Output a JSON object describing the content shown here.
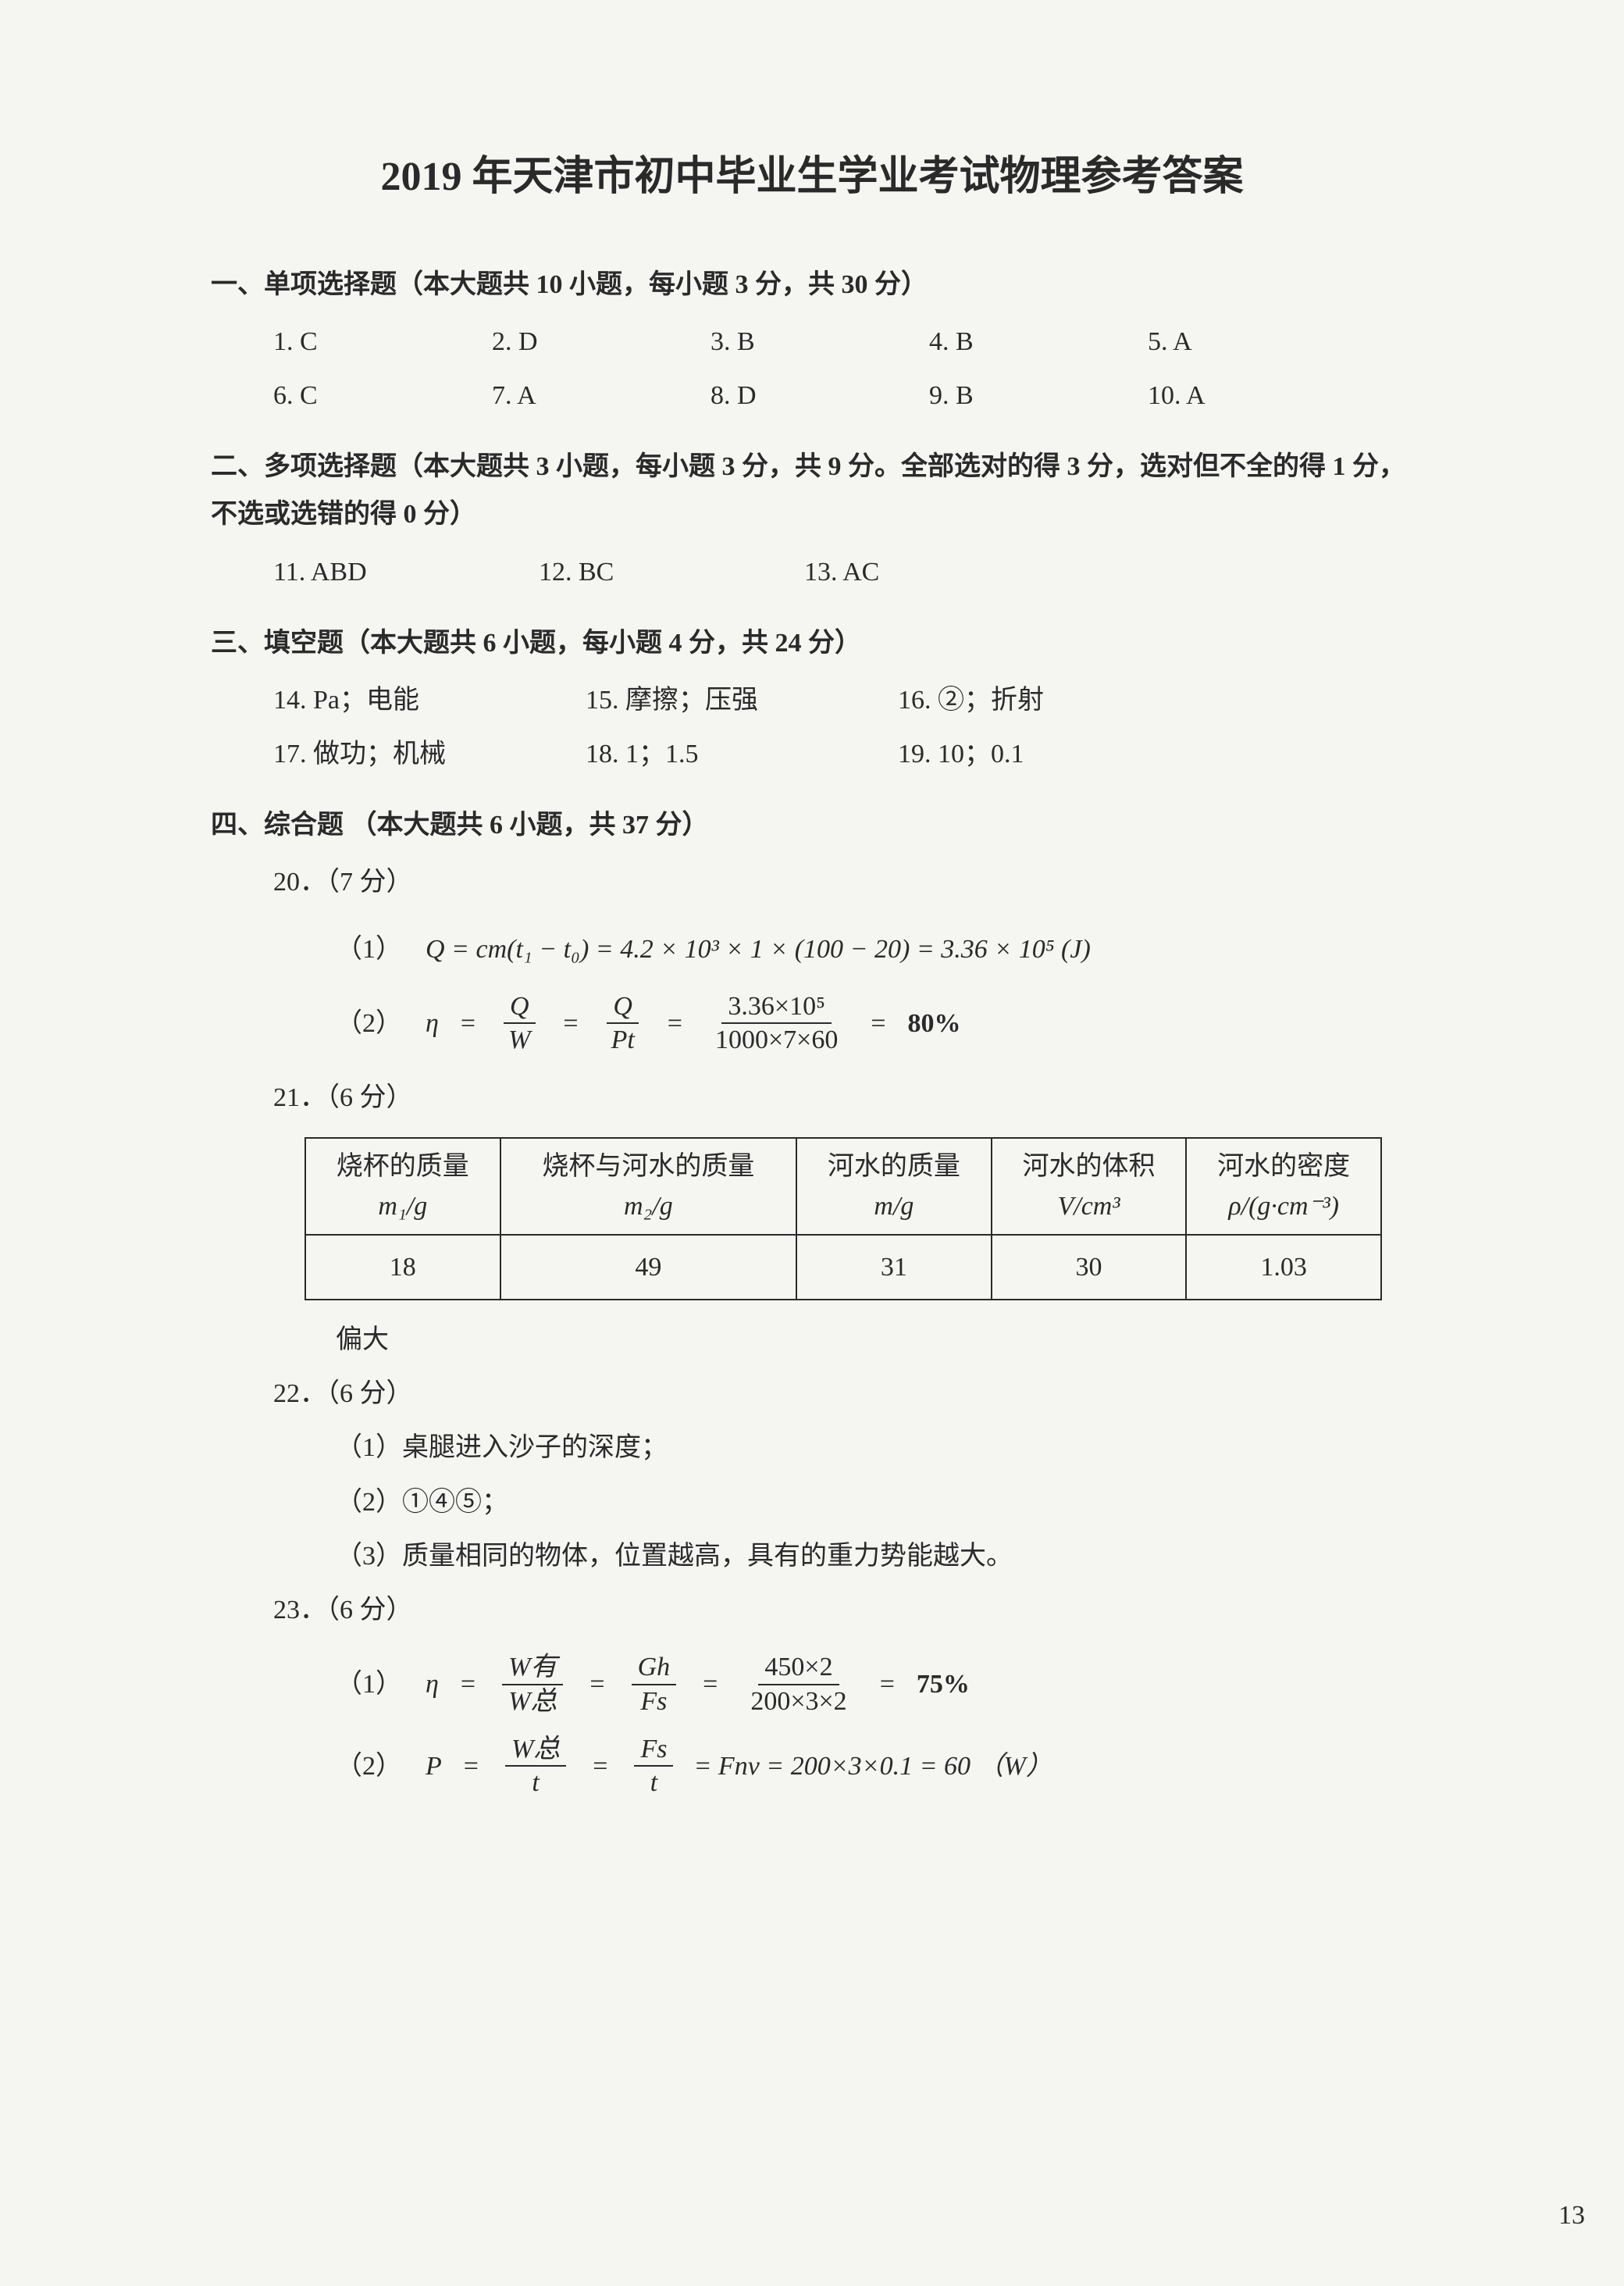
{
  "title": "2019 年天津市初中毕业生学业考试物理参考答案",
  "section1": {
    "header": "一、单项选择题（本大题共 10 小题，每小题 3 分，共 30 分）",
    "items": [
      {
        "n": "1.",
        "a": "C"
      },
      {
        "n": "2.",
        "a": "D"
      },
      {
        "n": "3.",
        "a": "B"
      },
      {
        "n": "4.",
        "a": "B"
      },
      {
        "n": "5.",
        "a": "A"
      },
      {
        "n": "6.",
        "a": "C"
      },
      {
        "n": "7.",
        "a": "A"
      },
      {
        "n": "8.",
        "a": "D"
      },
      {
        "n": "9.",
        "a": "B"
      },
      {
        "n": "10.",
        "a": "A"
      }
    ]
  },
  "section2": {
    "header": "二、多项选择题（本大题共 3 小题，每小题 3 分，共 9 分。全部选对的得 3 分，选对但不全的得 1 分，不选或选错的得 0 分）",
    "items": [
      {
        "n": "11.",
        "a": "ABD"
      },
      {
        "n": "12.",
        "a": "BC"
      },
      {
        "n": "13.",
        "a": "AC"
      }
    ]
  },
  "section3": {
    "header": "三、填空题（本大题共 6 小题，每小题 4 分，共 24 分）",
    "items": [
      {
        "n": "14.",
        "a": "Pa；电能"
      },
      {
        "n": "15.",
        "a": "摩擦；压强"
      },
      {
        "n": "16.",
        "a": "②；折射"
      },
      {
        "n": "17.",
        "a": "做功；机械"
      },
      {
        "n": "18.",
        "a": "1；1.5"
      },
      {
        "n": "19.",
        "a": "10；0.1"
      }
    ]
  },
  "section4": {
    "header": "四、综合题 （本大题共 6 小题，共 37 分）",
    "q20": {
      "title": "20．（7 分）",
      "p1_label": "（1）",
      "p1_text_plain": "Q = cm(t₁ − t₀) = 4.2 × 10³ × 1 × (100 − 20) = 3.36 × 10⁵ (J)",
      "p2_label": "（2）",
      "p2_eta": "η",
      "p2_frac1_num": "Q",
      "p2_frac1_den": "W",
      "p2_frac2_num": "Q",
      "p2_frac2_den": "Pt",
      "p2_frac3_num": "3.36×10⁵",
      "p2_frac3_den": "1000×7×60",
      "p2_result": "80%"
    },
    "q21": {
      "title": "21．（6 分）",
      "table": {
        "headers": [
          {
            "l1": "烧杯的质量",
            "l2": "m₁/g"
          },
          {
            "l1": "烧杯与河水的质量",
            "l2": "m₂/g"
          },
          {
            "l1": "河水的质量",
            "l2": "m/g"
          },
          {
            "l1": "河水的体积",
            "l2": "V/cm³"
          },
          {
            "l1": "河水的密度",
            "l2": "ρ/(g·cm⁻³)"
          }
        ],
        "row": [
          "18",
          "49",
          "31",
          "30",
          "1.03"
        ],
        "col_widths": [
          "220px",
          "330px",
          "260px",
          "280px",
          "290px"
        ]
      },
      "note": "偏大"
    },
    "q22": {
      "title": "22．（6 分）",
      "p1": "（1）桌腿进入沙子的深度；",
      "p2": "（2）①④⑤；",
      "p3": "（3）质量相同的物体，位置越高，具有的重力势能越大。"
    },
    "q23": {
      "title": "23．（6 分）",
      "p1_label": "（1）",
      "p1_eta": "η",
      "p1_frac1_num": "W有",
      "p1_frac1_den": "W总",
      "p1_frac2_num": "Gh",
      "p1_frac2_den": "Fs",
      "p1_frac3_num": "450×2",
      "p1_frac3_den": "200×3×2",
      "p1_result": "75%",
      "p2_label": "（2）",
      "p2_P": "P",
      "p2_frac1_num": "W总",
      "p2_frac1_den": "t",
      "p2_frac2_num": "Fs",
      "p2_frac2_den": "t",
      "p2_tail": "= Fnv = 200×3×0.1 = 60 （W）"
    }
  },
  "page_number": "13"
}
